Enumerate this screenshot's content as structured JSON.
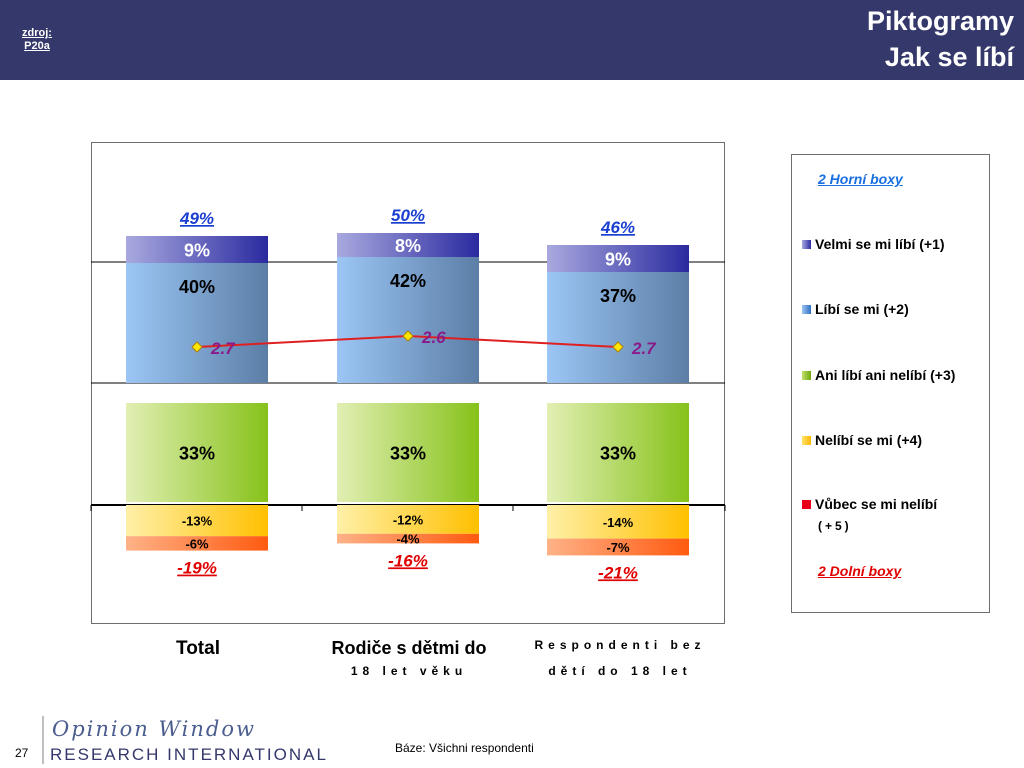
{
  "header": {
    "source_line1": "zdroj:",
    "source_line2": "P20a",
    "title_line1": "Piktogramy",
    "title_line2": "Jak se líbí"
  },
  "chart_data": {
    "type": "bar",
    "stacked": true,
    "categories": [
      "Total",
      "Rodiče s dětmi do 18 let věku",
      "Respondenti bez dětí do 18 let"
    ],
    "series": [
      {
        "name": "Velmi se  mi líbí (+1)",
        "values": [
          9,
          8,
          9
        ],
        "labels": [
          "9%",
          "8%",
          "9%"
        ],
        "color": "#3a3aa6"
      },
      {
        "name": "Líbí se mi (+2)",
        "values": [
          40,
          42,
          37
        ],
        "labels": [
          "40%",
          "42%",
          "37%"
        ],
        "color": "#5b8cc8"
      },
      {
        "name": "Ani líbí ani nelíbí (+3)",
        "values": [
          33,
          33,
          33
        ],
        "labels": [
          "33%",
          "33%",
          "33%"
        ],
        "color": "#8ec21f"
      },
      {
        "name": "Nelíbí se mi (+4)",
        "values": [
          -13,
          -12,
          -14
        ],
        "labels": [
          "-13%",
          "-12%",
          "-14%"
        ],
        "color": "#ffc61a"
      },
      {
        "name": "Vůbec se mi nelíbí (+5)",
        "values": [
          -6,
          -4,
          -7
        ],
        "labels": [
          "-6%",
          "-4%",
          "-7%"
        ],
        "color": "#ff6a1a"
      }
    ],
    "top_box_totals": [
      "49%",
      "50%",
      "46%"
    ],
    "bottom_box_totals": [
      "-19%",
      "-16%",
      "-21%"
    ],
    "mean_line": {
      "values": [
        2.7,
        2.6,
        2.7
      ],
      "labels": [
        "2.7",
        "2.6",
        "2.7"
      ],
      "color": "#e02020"
    },
    "legend_position": "right",
    "grid": true
  },
  "legend": {
    "top_head": "2 Horní boxy",
    "items": [
      {
        "label": "Velmi se  mi líbí (+1)",
        "color": "#3a3aa6"
      },
      {
        "label": "Líbí se mi (+2)",
        "color": "#5b8cc8"
      },
      {
        "label": "Ani líbí ani nelíbí (+3)",
        "color": "#8ec21f"
      },
      {
        "label": "Nelíbí se mi (+4)",
        "color": "#ffc61a"
      },
      {
        "label": "Vůbec se mi nelíbí",
        "color": "#e8001a"
      }
    ],
    "item5_sub": "(+5)",
    "bottom_head": "2 Dolní boxy"
  },
  "categories_display": {
    "cat1": "Total",
    "cat2_line1": "Rodiče s dětmi do",
    "cat2_line2": "18 let věku",
    "cat3_line1": "Respondenti bez",
    "cat3_line2": "dětí do 18 let"
  },
  "footer": {
    "logo_top": "Opinion Window",
    "logo_bottom": "RESEARCH INTERNATIONAL",
    "page": "27",
    "base": "Báze: Všichni respondenti"
  }
}
